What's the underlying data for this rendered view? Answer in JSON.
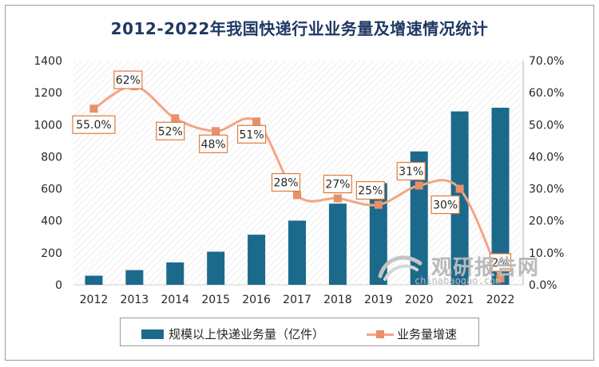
{
  "chart_data": {
    "type": "bar+line",
    "title": "2012-2022年我国快递行业业务量及增速情况统计",
    "categories": [
      "2012",
      "2013",
      "2014",
      "2015",
      "2016",
      "2017",
      "2018",
      "2019",
      "2020",
      "2021",
      "2022"
    ],
    "series": [
      {
        "name": "规模以上快递业务量（亿件）",
        "type": "bar",
        "axis": "left",
        "values": [
          57,
          92,
          140,
          207,
          313,
          401,
          507,
          635,
          833,
          1083,
          1106
        ]
      },
      {
        "name": "业务量增速",
        "type": "line",
        "axis": "right",
        "values": [
          55.0,
          62,
          52,
          48,
          51,
          28,
          27,
          25,
          31,
          30,
          2
        ],
        "labels": [
          "55.0%",
          "62%",
          "52%",
          "48%",
          "51%",
          "28%",
          "27%",
          "25%",
          "31%",
          "30%",
          "2%"
        ]
      }
    ],
    "y_left": {
      "min": 0,
      "max": 1400,
      "step": 200,
      "ticks": [
        "0",
        "200",
        "400",
        "600",
        "800",
        "1000",
        "1200",
        "1400"
      ]
    },
    "y_right": {
      "min": 0,
      "max": 70,
      "step": 10,
      "ticks": [
        "0.0%",
        "10.0%",
        "20.0%",
        "30.0%",
        "40.0%",
        "50.0%",
        "60.0%",
        "70.0%"
      ]
    },
    "legend_position": "bottom",
    "colors": {
      "bar": "#1b6a8c",
      "line": "#f4a582",
      "marker": "#e8906a",
      "label_border": "#e07b39",
      "title": "#1f3864"
    }
  },
  "watermark": {
    "brand": "观研报告网",
    "url": "chinabaogao.com"
  }
}
